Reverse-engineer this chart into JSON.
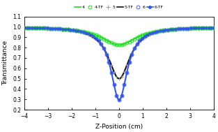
{
  "title": "",
  "xlabel": "Z-Position (cm)",
  "ylabel": "Transmittance",
  "xlim": [
    -4,
    4
  ],
  "ylim": [
    0.2,
    1.1
  ],
  "yticks": [
    0.2,
    0.3,
    0.4,
    0.5,
    0.6,
    0.7,
    0.8,
    0.9,
    1.0,
    1.1
  ],
  "xticks": [
    -4,
    -3,
    -2,
    -1,
    0,
    1,
    2,
    3,
    4
  ],
  "series": {
    "4": {
      "color": "#22dd22",
      "lw": 1.5,
      "marker": null,
      "T_min": 0.825,
      "zR": 0.9
    },
    "4-TF": {
      "color": "#22dd22",
      "lw": 0,
      "marker": "o",
      "T_min": 0.825,
      "zR": 0.9
    },
    "5": {
      "color": "#999999",
      "lw": 0,
      "marker": "+",
      "T_min": 0.5,
      "zR": 0.55
    },
    "5-TF": {
      "color": "#111111",
      "lw": 1.5,
      "marker": null,
      "T_min": 0.5,
      "zR": 0.55
    },
    "6": {
      "color": "#4466ff",
      "lw": 0,
      "marker": "o",
      "T_min": 0.295,
      "zR": 0.42
    },
    "6-TF": {
      "color": "#3355ee",
      "lw": 1.5,
      "marker": "o",
      "T_min": 0.295,
      "zR": 0.42
    }
  },
  "n_dense": 500,
  "n_sparse": 75,
  "background": "#ffffff"
}
